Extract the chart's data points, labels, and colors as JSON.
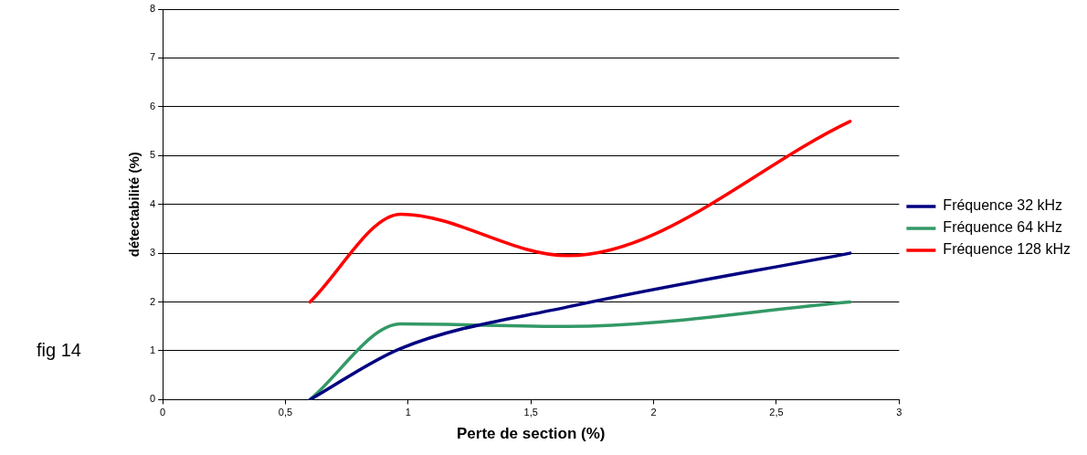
{
  "chart_data": {
    "type": "line",
    "xlabel": "Perte de section (%)",
    "ylabel": "détectabilité (%)",
    "annotations": [
      "fig 14"
    ],
    "xlim": [
      0,
      3
    ],
    "xticks": [
      0,
      {
        "value": 0.5,
        "label": "0,5"
      },
      1,
      {
        "value": 1.5,
        "label": "1,5"
      },
      2,
      {
        "value": 2.5,
        "label": "2,5"
      },
      3
    ],
    "ylim": [
      0,
      8
    ],
    "yticks": [
      0,
      1,
      2,
      3,
      4,
      5,
      6,
      7,
      8
    ],
    "grid": "y",
    "legend": "right",
    "marker": "none",
    "line_style": "solid",
    "series": [
      {
        "name": "Fréquence 32 kHz",
        "color": "#000080",
        "x": [
          0.6,
          0.97,
          1.65,
          2.8
        ],
        "values": [
          0,
          1.05,
          1.9,
          3
        ]
      },
      {
        "name": "Fréquence 64 kHz",
        "color": "#339966",
        "x": [
          0.6,
          0.97,
          1.65,
          2.8
        ],
        "values": [
          0,
          1.55,
          1.5,
          2
        ]
      },
      {
        "name": "Fréquence 128 kHz",
        "color": "#ff0000",
        "x": [
          0.6,
          0.97,
          1.65,
          2.8
        ],
        "values": [
          2,
          3.8,
          2.95,
          5.7
        ]
      }
    ]
  }
}
